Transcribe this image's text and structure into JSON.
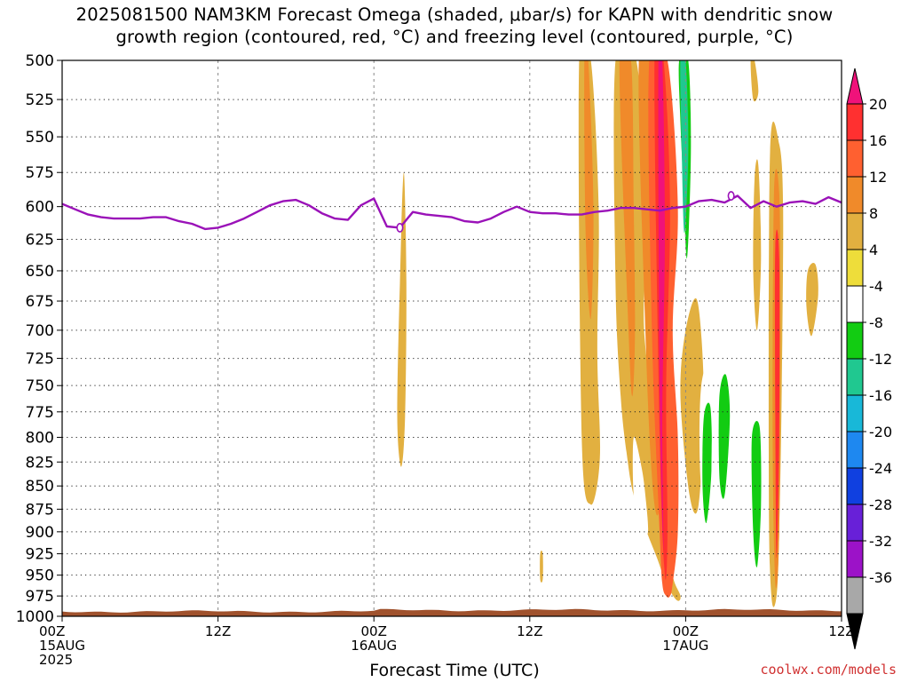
{
  "title_line1": "2025081500 NAM3KM Forecast Omega (shaded, μbar/s) for KAPN with dendritic snow",
  "title_line2": "growth region (contoured, red, °C) and freezing level (contoured, purple, °C)",
  "credit": "coolwx.com/models",
  "chart_data": {
    "type": "heatmap",
    "xlabel": "Forecast Time (UTC)",
    "ylabel": "",
    "y_scale": "pressure",
    "xlim_hours": [
      0,
      60
    ],
    "ylim_hpa": [
      1000,
      500
    ],
    "x_ticks": [
      {
        "hour": 0,
        "lines": [
          "00Z",
          "15AUG",
          "2025"
        ]
      },
      {
        "hour": 12,
        "lines": [
          "12Z"
        ]
      },
      {
        "hour": 24,
        "lines": [
          "00Z",
          "16AUG"
        ]
      },
      {
        "hour": 36,
        "lines": [
          "12Z"
        ]
      },
      {
        "hour": 48,
        "lines": [
          "00Z",
          "17AUG"
        ]
      },
      {
        "hour": 60,
        "lines": [
          "12Z"
        ]
      }
    ],
    "y_ticks": [
      500,
      525,
      550,
      575,
      600,
      625,
      650,
      675,
      700,
      725,
      750,
      775,
      800,
      825,
      850,
      875,
      900,
      925,
      950,
      975,
      1000
    ],
    "colorbar": {
      "labels": [
        "20",
        "16",
        "12",
        "8",
        "4",
        "-4",
        "-8",
        "-12",
        "-16",
        "-20",
        "-24",
        "-28",
        "-32",
        "-36"
      ],
      "colors": [
        "#ff3030",
        "#ff6030",
        "#f08a2a",
        "#e2b040",
        "#eedd3a",
        "#ffffff",
        "#12cc12",
        "#20c890",
        "#18b8d8",
        "#1e88f0",
        "#1040e0",
        "#6820d8",
        "#9c12c8",
        "#a8a8a8"
      ],
      "top_color": "#f0127a",
      "bottom_color": "#000000"
    },
    "omega_regions": [
      {
        "t": [
          18.0,
          18.7,
          19.5,
          19.5,
          19.9,
          20.2,
          21.0,
          21.4,
          21.7,
          21.1,
          20.3,
          19.8,
          19.4,
          18.7,
          17.6,
          16.7,
          16.7,
          17.6
        ],
        "p": [
          910,
          905,
          890,
          848,
          838,
          862,
          880,
          880,
          915,
          940,
          952,
          940,
          962,
          970,
          970,
          942,
          906,
          906
        ],
        "value": -6
      },
      {
        "t": [
          21.7,
          22.8,
          23.5,
          24.3,
          24.2,
          23.4,
          22.2,
          21.4
        ],
        "p": [
          915,
          892,
          885,
          905,
          950,
          972,
          975,
          945
        ],
        "value": -6
      },
      {
        "t": [
          26.0,
          26.3,
          26.5,
          26.4,
          26.1,
          25.8
        ],
        "p": [
          660,
          575,
          660,
          780,
          830,
          780
        ],
        "value": 5
      },
      {
        "t": [
          37.6,
          38.9,
          38.7,
          37.9
        ],
        "p": [
          500,
          500,
          705,
          705
        ],
        "value": -6
      },
      {
        "t": [
          39.8,
          40.7,
          41.3,
          41.2,
          41.4,
          40.7,
          40.0
        ],
        "p": [
          500,
          500,
          600,
          720,
          820,
          870,
          800
        ],
        "value": 5
      },
      {
        "t": [
          40.2,
          40.5,
          40.9,
          40.7,
          40.3
        ],
        "p": [
          500,
          500,
          600,
          690,
          620
        ],
        "value": 8
      },
      {
        "t": [
          42.6,
          44.2,
          45.0,
          44.8,
          45.9,
          46.8,
          47.0,
          47.6,
          47.3,
          46.5,
          45.8,
          45.0,
          44.0,
          43.5,
          43.0,
          42.6
        ],
        "p": [
          500,
          500,
          600,
          700,
          800,
          900,
          950,
          975,
          980,
          960,
          930,
          900,
          860,
          820,
          760,
          660
        ],
        "value": 5
      },
      {
        "t": [
          42.9,
          43.8,
          44.0,
          44.1,
          43.9,
          43.6
        ],
        "p": [
          500,
          500,
          600,
          700,
          760,
          700
        ],
        "value": 8
      },
      {
        "t": [
          44.4,
          45.7,
          46.4,
          46.6,
          46.4,
          45.9,
          45.4,
          44.9
        ],
        "p": [
          500,
          500,
          600,
          700,
          800,
          880,
          840,
          700
        ],
        "value": 10
      },
      {
        "t": [
          44.0,
          44.6,
          44.9,
          45.1,
          44.6,
          44.0
        ],
        "p": [
          800,
          830,
          860,
          900,
          900,
          860
        ],
        "value": -6
      },
      {
        "t": [
          45.2,
          46.6,
          47.4,
          47.0,
          47.4,
          47.4,
          47.0,
          46.8,
          46.5,
          46.2,
          46.0,
          45.4
        ],
        "p": [
          500,
          500,
          600,
          700,
          800,
          900,
          960,
          975,
          975,
          960,
          900,
          700
        ],
        "value": 14
      },
      {
        "t": [
          45.6,
          46.3,
          46.8,
          46.5,
          46.6,
          46.4,
          46.0
        ],
        "p": [
          500,
          500,
          600,
          750,
          900,
          950,
          800
        ],
        "value": 18
      },
      {
        "t": [
          45.9,
          46.2,
          46.4,
          46.2,
          46.3,
          46.0
        ],
        "p": [
          500,
          500,
          620,
          780,
          920,
          760
        ],
        "value": 24
      },
      {
        "t": [
          47.5,
          48.2,
          48.4,
          48.1,
          47.8,
          47.6
        ],
        "p": [
          500,
          500,
          560,
          640,
          580,
          540
        ],
        "value": -10
      },
      {
        "t": [
          47.6,
          48.0,
          48.2,
          47.9,
          47.7
        ],
        "p": [
          500,
          500,
          560,
          620,
          560
        ],
        "value": -14
      },
      {
        "t": [
          48.0,
          48.9,
          49.4,
          49.0,
          48.3,
          47.6
        ],
        "p": [
          700,
          675,
          760,
          870,
          860,
          760
        ],
        "value": 5
      },
      {
        "t": [
          49.2,
          50.0,
          50.4,
          50.0,
          49.6,
          49.1
        ],
        "p": [
          750,
          730,
          800,
          900,
          910,
          830
        ],
        "value": -6
      },
      {
        "t": [
          49.4,
          49.9,
          50.0,
          49.6,
          49.3
        ],
        "p": [
          780,
          770,
          830,
          890,
          850
        ],
        "value": -10
      },
      {
        "t": [
          50.2,
          51.2,
          51.5,
          51.4,
          50.5,
          50.0
        ],
        "p": [
          760,
          700,
          690,
          820,
          900,
          860
        ],
        "value": -6
      },
      {
        "t": [
          50.6,
          51.1,
          51.4,
          51.0,
          50.6
        ],
        "p": [
          760,
          740,
          780,
          860,
          840
        ],
        "value": -10
      },
      {
        "t": [
          53.3,
          53.6,
          53.8,
          53.5,
          53.2
        ],
        "p": [
          580,
          570,
          640,
          700,
          650
        ],
        "value": 5
      },
      {
        "t": [
          53.0,
          53.8,
          54.0,
          53.9,
          53.4,
          53.0
        ],
        "p": [
          790,
          760,
          850,
          960,
          960,
          900
        ],
        "value": -6
      },
      {
        "t": [
          53.1,
          53.7,
          53.8,
          53.5,
          53.2
        ],
        "p": [
          800,
          790,
          870,
          940,
          900
        ],
        "value": -10
      },
      {
        "t": [
          54.5,
          55.2,
          55.5,
          55.4,
          55.2,
          55.0,
          54.6,
          54.4
        ],
        "p": [
          560,
          555,
          600,
          750,
          900,
          975,
          975,
          850
        ],
        "value": 5
      },
      {
        "t": [
          54.8,
          55.2,
          55.3,
          55.2,
          54.9,
          54.7
        ],
        "p": [
          590,
          590,
          700,
          900,
          960,
          800
        ],
        "value": 10
      },
      {
        "t": [
          54.9,
          55.2,
          55.2,
          55.0,
          54.9
        ],
        "p": [
          630,
          640,
          800,
          930,
          780
        ],
        "value": 16
      },
      {
        "t": [
          56.5,
          57.0,
          57.6,
          58.0,
          59.0,
          59.4,
          59.4,
          58.6,
          58.0,
          57.2,
          56.6
        ],
        "p": [
          900,
          880,
          870,
          900,
          920,
          940,
          960,
          960,
          975,
          975,
          930
        ],
        "value": -6
      },
      {
        "t": [
          58.7,
          59.0,
          59.0,
          58.7
        ],
        "p": [
          935,
          935,
          950,
          950
        ],
        "value": 0
      },
      {
        "t": [
          57.4,
          58.0,
          58.2,
          57.7,
          57.3
        ],
        "p": [
          650,
          645,
          670,
          705,
          680
        ],
        "value": 5
      },
      {
        "t": [
          53.0,
          53.3,
          53.6,
          53.2
        ],
        "p": [
          500,
          500,
          520,
          525
        ],
        "value": 5
      },
      {
        "t": [
          37.7,
          38.0,
          37.9,
          37.7
        ],
        "p": [
          840,
          840,
          880,
          880
        ],
        "value": -6
      },
      {
        "t": [
          36.8,
          37.0,
          37.0,
          36.8
        ],
        "p": [
          925,
          925,
          955,
          955
        ],
        "value": 5
      },
      {
        "t": [
          42.9,
          43.5,
          43.6,
          43.0
        ],
        "p": [
          935,
          935,
          945,
          945
        ],
        "value": -6
      },
      {
        "t": [
          39.6,
          39.8,
          39.8,
          39.6
        ],
        "p": [
          920,
          920,
          927,
          927
        ],
        "value": -6
      }
    ],
    "freezing_level": {
      "label": "0",
      "t": [
        0,
        1,
        2,
        3,
        4,
        5,
        6,
        7,
        8,
        9,
        10,
        11,
        12,
        13,
        14,
        15,
        16,
        17,
        18,
        19,
        20,
        21,
        22,
        23,
        24,
        25,
        26,
        27,
        28,
        29,
        30,
        31,
        32,
        33,
        34,
        35,
        36,
        37,
        38,
        39,
        40,
        41,
        42,
        43,
        44,
        45,
        46,
        47,
        48,
        49,
        50,
        51,
        52,
        53,
        54,
        55,
        56,
        57,
        58,
        59,
        60
      ],
      "p": [
        598,
        602,
        606,
        608,
        609,
        609,
        609,
        608,
        608,
        611,
        613,
        617,
        616,
        613,
        609,
        604,
        599,
        596,
        595,
        599,
        605,
        609,
        610,
        599,
        594,
        615,
        616,
        604,
        606,
        607,
        608,
        611,
        612,
        609,
        604,
        600,
        604,
        605,
        605,
        606,
        606,
        604,
        603,
        601,
        601,
        602,
        603,
        601,
        600,
        596,
        595,
        597,
        592,
        601,
        596,
        600,
        597,
        596,
        598,
        593,
        597
      ]
    },
    "terrain_hpa": 994
  }
}
